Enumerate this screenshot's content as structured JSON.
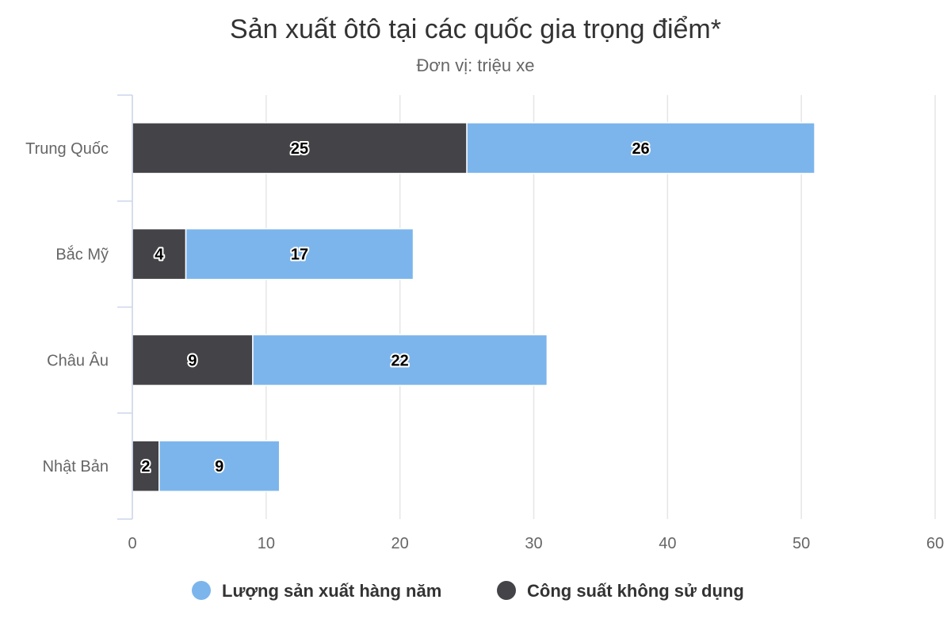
{
  "chart_data": {
    "type": "bar",
    "orientation": "horizontal",
    "stacked": true,
    "title": "Sản xuất ôtô tại các quốc gia trọng điểm*",
    "subtitle": "Đơn vị: triệu xe",
    "categories": [
      "Trung Quốc",
      "Bắc Mỹ",
      "Châu Âu",
      "Nhật Bản"
    ],
    "series": [
      {
        "name": "Lượng sản xuất hàng năm",
        "color": "#7cb5ec",
        "values": [
          26,
          17,
          22,
          9
        ]
      },
      {
        "name": "Công suất không sử dụng",
        "color": "#434348",
        "values": [
          25,
          4,
          9,
          2
        ]
      }
    ],
    "xlim": [
      0,
      60
    ],
    "ticks": [
      0,
      10,
      20,
      30,
      40,
      50,
      60
    ],
    "grid": true,
    "data_labels": true,
    "legend_position": "bottom"
  }
}
